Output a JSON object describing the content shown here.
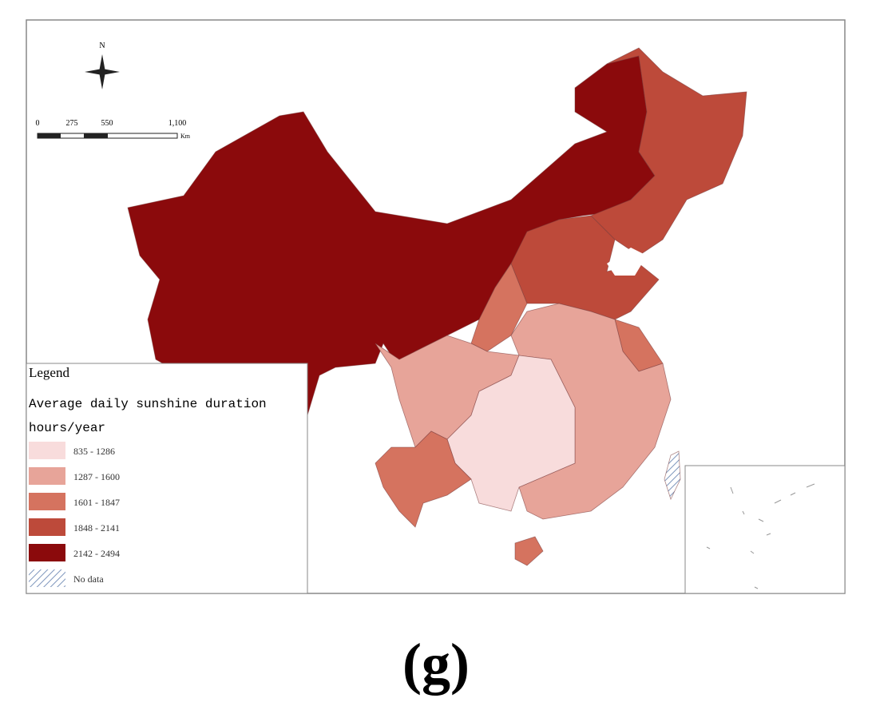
{
  "north_label": "N",
  "scale_bar": {
    "labels": [
      "0",
      "275",
      "550",
      "1,100"
    ],
    "unit": "Km"
  },
  "legend": {
    "heading": "Legend",
    "title": "Average daily sunshine duration",
    "subtitle": "hours/year",
    "items": [
      {
        "label": "835 - 1286",
        "color": "#f8dcdc"
      },
      {
        "label": "1287 - 1600",
        "color": "#e7a499"
      },
      {
        "label": "1601 - 1847",
        "color": "#d5735f"
      },
      {
        "label": "1848 - 2141",
        "color": "#bd4a3a"
      },
      {
        "label": "2142 - 2494",
        "color": "#8b0a0c"
      },
      {
        "label": "No data",
        "color": "#9fb3cf"
      }
    ]
  },
  "caption": "(g)"
}
